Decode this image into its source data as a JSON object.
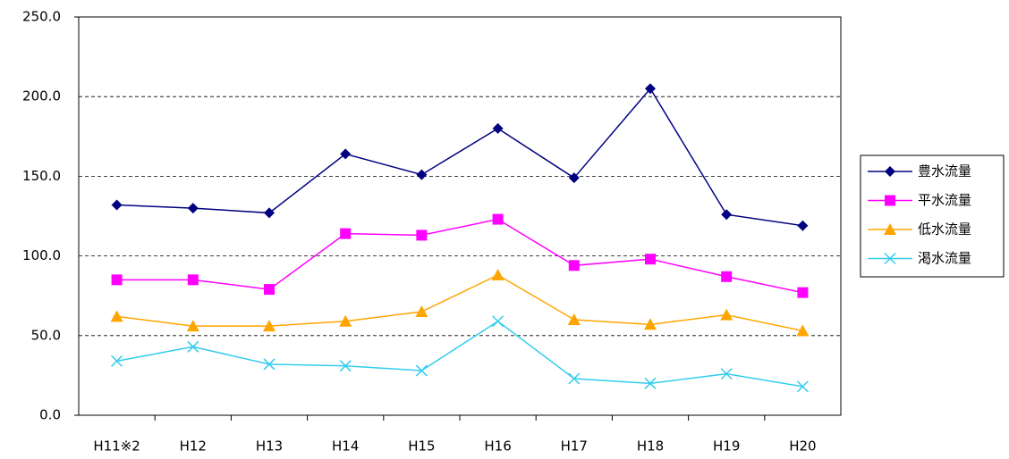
{
  "chart_data": {
    "type": "line",
    "categories": [
      "H11※2",
      "H12",
      "H13",
      "H14",
      "H15",
      "H16",
      "H17",
      "H18",
      "H19",
      "H20"
    ],
    "series": [
      {
        "name": "豊水流量",
        "color": "#000080",
        "marker": "diamond",
        "values": [
          132,
          130,
          127,
          164,
          151,
          180,
          149,
          205,
          126,
          119
        ]
      },
      {
        "name": "平水流量",
        "color": "#ff00ff",
        "marker": "square",
        "values": [
          85,
          85,
          79,
          114,
          113,
          123,
          94,
          98,
          87,
          77
        ]
      },
      {
        "name": "低水流量",
        "color": "#ffa500",
        "marker": "triangle",
        "values": [
          62,
          56,
          56,
          59,
          65,
          88,
          60,
          57,
          63,
          53
        ]
      },
      {
        "name": "渇水流量",
        "color": "#33ccee",
        "marker": "x",
        "values": [
          34,
          43,
          32,
          31,
          28,
          59,
          23,
          20,
          26,
          18
        ]
      }
    ],
    "ylim": [
      0,
      250
    ],
    "yticks": [
      {
        "value": 0,
        "label": "0.0"
      },
      {
        "value": 50,
        "label": "50.0"
      },
      {
        "value": 100,
        "label": "100.0"
      },
      {
        "value": 150,
        "label": "150.0"
      },
      {
        "value": 200,
        "label": "200.0"
      },
      {
        "value": 250,
        "label": "250.0"
      }
    ],
    "grid": true,
    "legend": "right"
  }
}
